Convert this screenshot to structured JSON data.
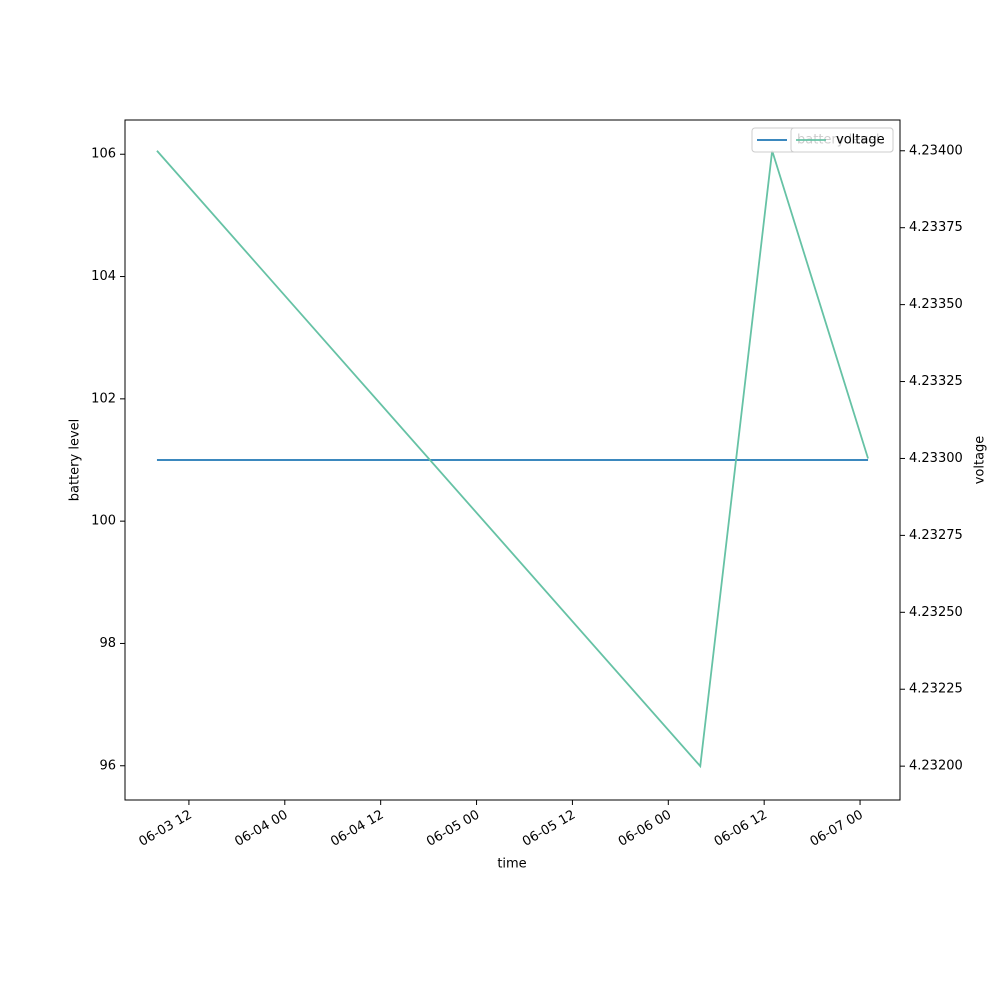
{
  "chart_data": {
    "type": "line",
    "x_label": "time",
    "y_label": "battery level",
    "y2_label": "voltage",
    "x": [
      "06-03 08",
      "06-06 04",
      "06-06 13",
      "06-07 01"
    ],
    "series": [
      {
        "name": "battery level",
        "color": "#1f77b4",
        "values": [
          101,
          101,
          101,
          101
        ],
        "axis": "y"
      },
      {
        "name": "voltage",
        "color": "#66c2a5",
        "values": [
          4.234,
          4.232,
          4.234,
          4.233
        ],
        "axis": "y2"
      }
    ],
    "xlim": [
      "06-03 04",
      "06-07 05"
    ],
    "xticks": [
      "06-03 12",
      "06-04 00",
      "06-04 12",
      "06-05 00",
      "06-05 12",
      "06-06 00",
      "06-06 12",
      "06-07 00"
    ],
    "ylim": [
      95.44,
      106.56
    ],
    "yticks": [
      96,
      98,
      100,
      102,
      104,
      106
    ],
    "y2lim": [
      4.23189,
      4.2341
    ],
    "y2ticks": [
      {
        "value": 4.232,
        "label": "4.23200"
      },
      {
        "value": 4.23225,
        "label": "4.23225"
      },
      {
        "value": 4.2325,
        "label": "4.23250"
      },
      {
        "value": 4.23275,
        "label": "4.23275"
      },
      {
        "value": 4.233,
        "label": "4.23300"
      },
      {
        "value": 4.23325,
        "label": "4.23325"
      },
      {
        "value": 4.2335,
        "label": "4.23350"
      },
      {
        "value": 4.23375,
        "label": "4.23375"
      },
      {
        "value": 4.234,
        "label": "4.23400"
      }
    ],
    "legend": "upper right",
    "grid": false
  }
}
